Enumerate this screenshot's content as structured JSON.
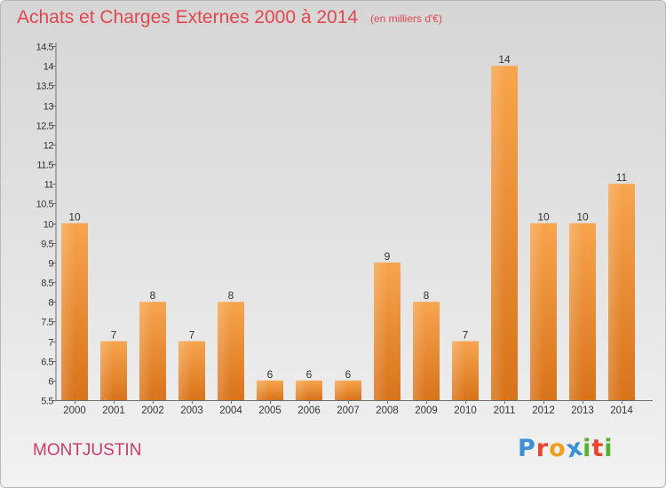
{
  "header": {
    "title": "Achats et Charges Externes 2000 à 2014",
    "subtitle": "(en milliers d'€)"
  },
  "footer": {
    "commune": "MONTJUSTIN",
    "brand_letters": [
      "P",
      "r",
      "o",
      "x",
      "i",
      "t",
      "i"
    ],
    "brand_colors": [
      "#3b8fd4",
      "#e8472e",
      "#f0a020",
      "#3b8fd4",
      "#58b030",
      "#e8472e",
      "#58b030"
    ]
  },
  "chart_data": {
    "type": "bar",
    "title": "Achats et Charges Externes 2000 à 2014",
    "subtitle": "(en milliers d'€)",
    "categories": [
      "2000",
      "2001",
      "2002",
      "2003",
      "2004",
      "2005",
      "2006",
      "2007",
      "2008",
      "2009",
      "2010",
      "2011",
      "2012",
      "2013",
      "2014"
    ],
    "values": [
      10,
      7,
      8,
      7,
      8,
      6,
      6,
      6,
      9,
      8,
      7,
      14,
      10,
      10,
      11
    ],
    "data_labels": [
      "10",
      "7",
      "8",
      "7",
      "8",
      "6",
      "6",
      "6",
      "9",
      "8",
      "7",
      "14",
      "10",
      "10",
      "11"
    ],
    "ylim": [
      5.5,
      14.5
    ],
    "yticks": [
      5.5,
      6,
      6.5,
      7,
      7.5,
      8,
      8.5,
      9,
      9.5,
      10,
      10.5,
      11,
      11.5,
      12,
      12.5,
      13,
      13.5,
      14,
      14.5
    ],
    "ytick_labels": [
      "5.5",
      "6",
      "6.5",
      "7",
      "7.5",
      "8",
      "8.5",
      "9",
      "9.5",
      "10",
      "10.5",
      "11",
      "11.5",
      "12",
      "12.5",
      "13",
      "13.5",
      "14",
      "14.5"
    ],
    "xlabel": "",
    "ylabel": "",
    "grid": false,
    "colors": {
      "bar_top": "#f7a54e",
      "bar_bottom": "#d8731a",
      "axis": "#6e6e6e",
      "text": "#333333"
    }
  }
}
